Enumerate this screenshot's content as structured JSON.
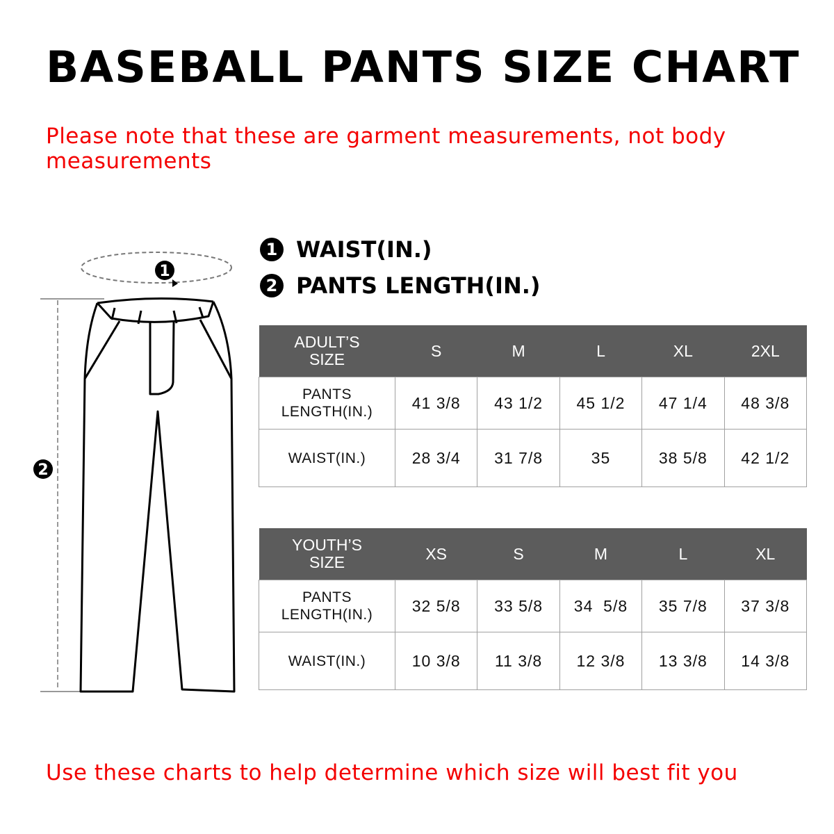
{
  "title": "BASEBALL PANTS SIZE CHART",
  "note": "Please note that these are garment measurements, not body measurements",
  "legend": [
    {
      "num": "1",
      "label": "WAIST(IN.)"
    },
    {
      "num": "2",
      "label": "PANTS LENGTH(IN.)"
    }
  ],
  "colors": {
    "header_bg": "#5c5c5c",
    "note_red": "#f40000"
  },
  "adult": {
    "header": [
      "ADULT’S SIZE",
      "S",
      "M",
      "L",
      "XL",
      "2XL"
    ],
    "rows": [
      {
        "label": "PANTS LENGTH(IN.)",
        "values": [
          "41 3/8",
          "43 1/2",
          "45 1/2",
          "47 1/4",
          "48 3/8"
        ]
      },
      {
        "label": "WAIST(IN.)",
        "values": [
          "28 3/4",
          "31 7/8",
          "35",
          "38 5/8",
          "42 1/2"
        ]
      }
    ]
  },
  "youth": {
    "header": [
      "YOUTH’S SIZE",
      "XS",
      "S",
      "M",
      "L",
      "XL"
    ],
    "rows": [
      {
        "label": "PANTS LENGTH(IN.)",
        "values": [
          "32 5/8",
          "33 5/8",
          "34  5/8",
          "35 7/8",
          "37 3/8"
        ]
      },
      {
        "label": "WAIST(IN.)",
        "values": [
          "10 3/8",
          "11 3/8",
          "12 3/8",
          "13 3/8",
          "14 3/8"
        ]
      }
    ]
  },
  "footer": "Use these charts to help determine which size will best fit you"
}
